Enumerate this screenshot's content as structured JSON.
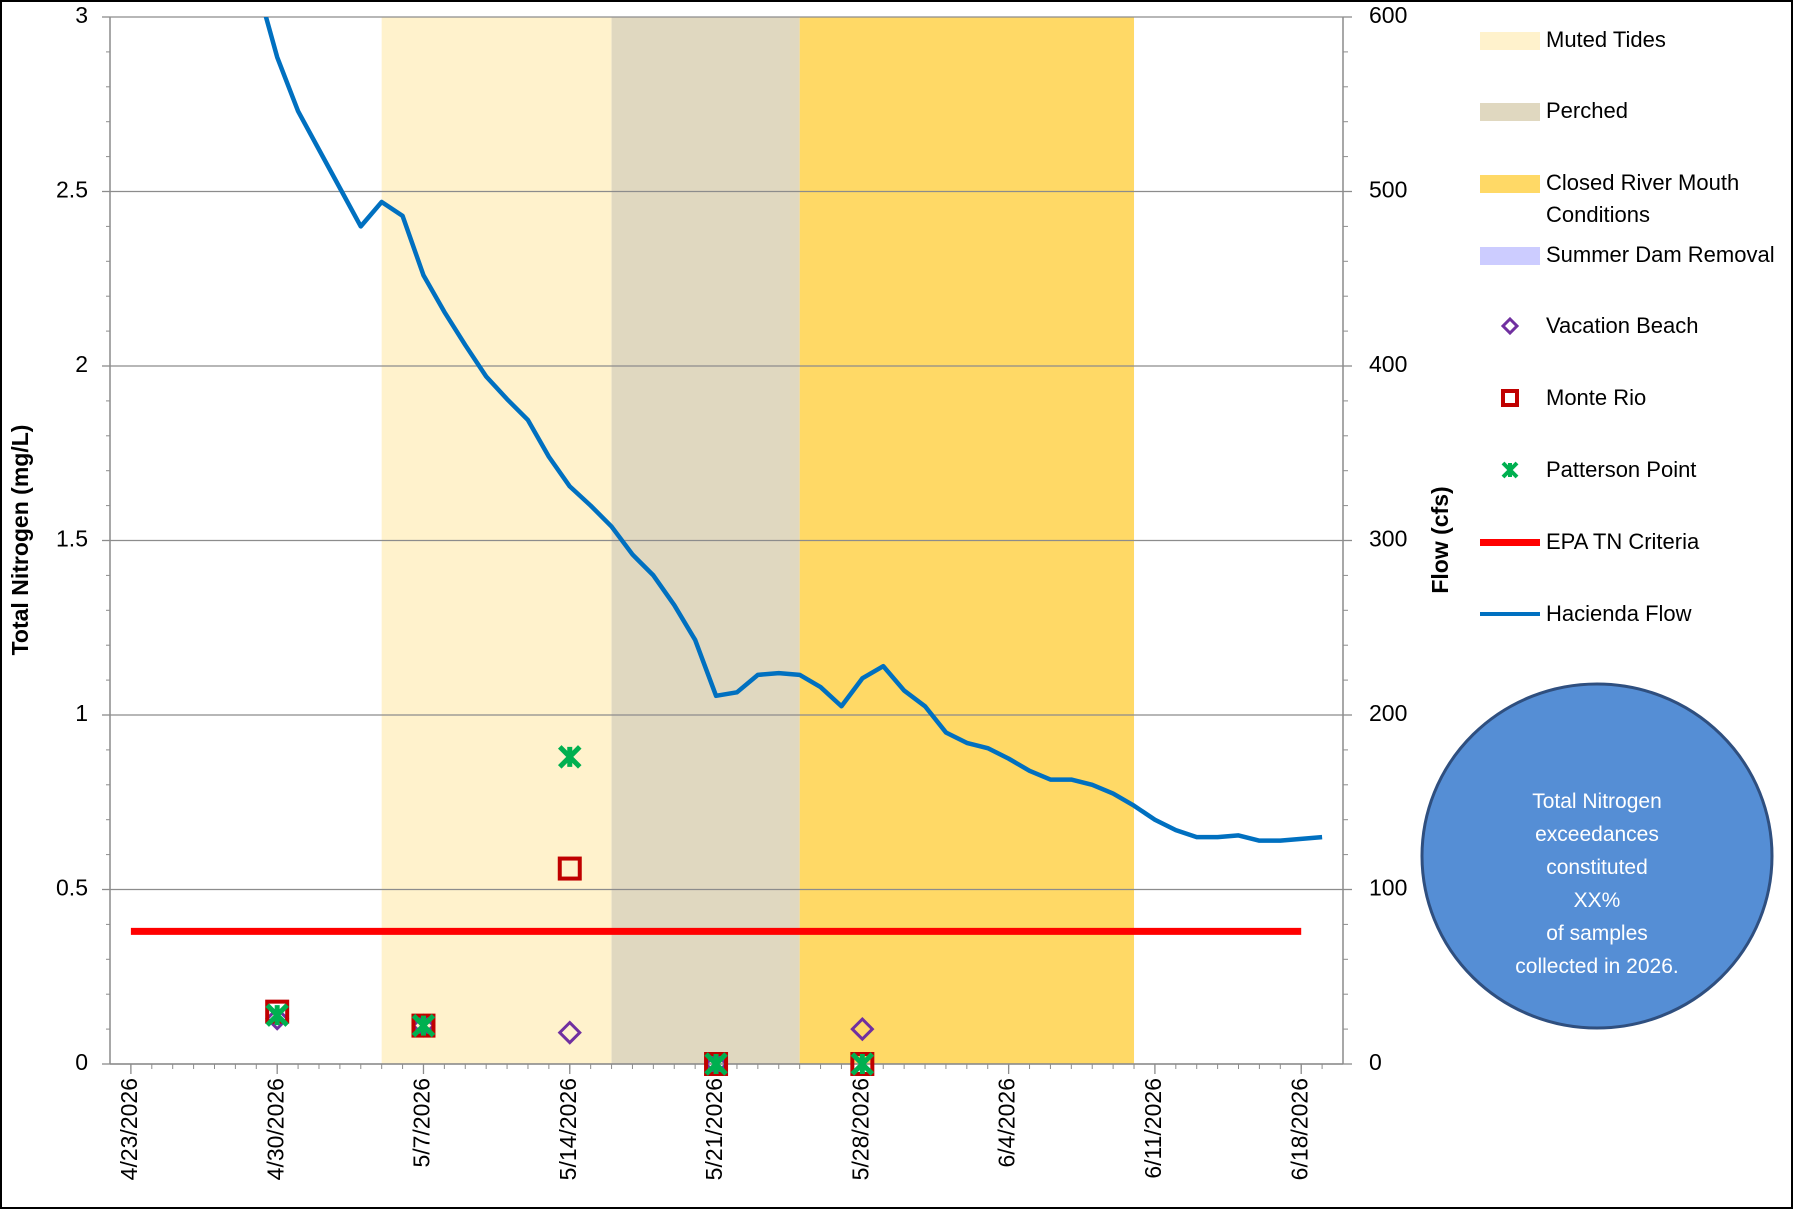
{
  "chart_data": {
    "type": "scatter",
    "ylabel": "Total Nitrogen (mg/L)",
    "y2label": "Flow (cfs)",
    "xlim": [
      "4/22/2026",
      "6/20/2026"
    ],
    "xticks": [
      "4/23/2026",
      "4/30/2026",
      "5/7/2026",
      "5/14/2026",
      "5/21/2026",
      "5/28/2026",
      "6/4/2026",
      "6/11/2026",
      "6/18/2026"
    ],
    "ylim": [
      0,
      3
    ],
    "yticks": [
      0,
      0.5,
      1,
      1.5,
      2,
      2.5,
      3
    ],
    "y2lim": [
      0,
      600
    ],
    "y2ticks": [
      0,
      100,
      200,
      300,
      400,
      500,
      600
    ],
    "grid": true,
    "periods": [
      {
        "name": "Muted Tides",
        "color": "#fff2cc",
        "start": "5/5/2026",
        "end": "5/16/2026"
      },
      {
        "name": "Perched",
        "color": "#e0d8c0",
        "start": "5/16/2026",
        "end": "5/25/2026"
      },
      {
        "name": "Closed River Mouth Conditions",
        "color": "#ffd966",
        "start": "5/25/2026",
        "end": "6/10/2026"
      },
      {
        "name": "Summer Dam Removal",
        "color": "#ccccff"
      }
    ],
    "series": [
      {
        "name": "Vacation Beach",
        "color": "#7030a0",
        "marker": "diamond",
        "x": [
          "4/30/2026",
          "5/7/2026",
          "5/14/2026",
          "5/21/2026",
          "5/28/2026"
        ],
        "values": [
          0.13,
          0.11,
          0.09,
          0,
          0.1
        ]
      },
      {
        "name": "Monte Rio",
        "color": "#c00000",
        "marker": "square",
        "x": [
          "4/30/2026",
          "5/7/2026",
          "5/14/2026",
          "5/21/2026",
          "5/28/2026"
        ],
        "values": [
          0.15,
          0.11,
          0.56,
          0,
          0
        ]
      },
      {
        "name": "Patterson Point",
        "color": "#00b050",
        "marker": "x",
        "x": [
          "4/30/2026",
          "5/7/2026",
          "5/14/2026",
          "5/21/2026",
          "5/28/2026"
        ],
        "values": [
          0.14,
          0.11,
          0.88,
          0,
          0
        ]
      }
    ],
    "criteria": {
      "name": "EPA TN Criteria",
      "color": "#ff0000",
      "x": [
        "4/23/2026",
        "6/18/2026"
      ],
      "values": [
        0.38,
        0.38
      ]
    },
    "flow": {
      "name": "Hacienda Flow",
      "color": "#0070c0",
      "axis": "y2",
      "x": [
        "4/29/2026",
        "4/30/2026",
        "5/1/2026",
        "5/2/2026",
        "5/3/2026",
        "5/4/2026",
        "5/5/2026",
        "5/6/2026",
        "5/7/2026",
        "5/8/2026",
        "5/9/2026",
        "5/10/2026",
        "5/11/2026",
        "5/12/2026",
        "5/13/2026",
        "5/14/2026",
        "5/15/2026",
        "5/16/2026",
        "5/17/2026",
        "5/18/2026",
        "5/19/2026",
        "5/20/2026",
        "5/21/2026",
        "5/22/2026",
        "5/23/2026",
        "5/24/2026",
        "5/25/2026",
        "5/26/2026",
        "5/27/2026",
        "5/28/2026",
        "5/29/2026",
        "5/30/2026",
        "5/31/2026",
        "6/1/2026",
        "6/2/2026",
        "6/3/2026",
        "6/4/2026",
        "6/5/2026",
        "6/6/2026",
        "6/7/2026",
        "6/8/2026",
        "6/9/2026",
        "6/10/2026",
        "6/11/2026",
        "6/12/2026",
        "6/13/2026",
        "6/14/2026",
        "6/15/2026",
        "6/16/2026",
        "6/17/2026",
        "6/18/2026",
        "6/19/2026"
      ],
      "values": [
        620,
        577,
        546,
        524,
        502,
        480,
        494,
        486,
        452,
        431,
        412,
        394,
        381,
        369,
        348,
        331,
        320,
        308,
        292,
        280,
        263,
        243,
        211,
        213,
        223,
        224,
        223,
        216,
        205,
        221,
        228,
        214,
        205,
        190,
        184,
        181,
        175,
        168,
        163,
        163,
        160,
        155,
        148,
        140,
        134,
        130,
        130,
        131,
        128,
        128,
        129,
        130
      ]
    },
    "annotation": [
      "Total Nitrogen",
      "exceedances",
      "constituted",
      "XX%",
      "of samples",
      "collected in 2026."
    ]
  }
}
